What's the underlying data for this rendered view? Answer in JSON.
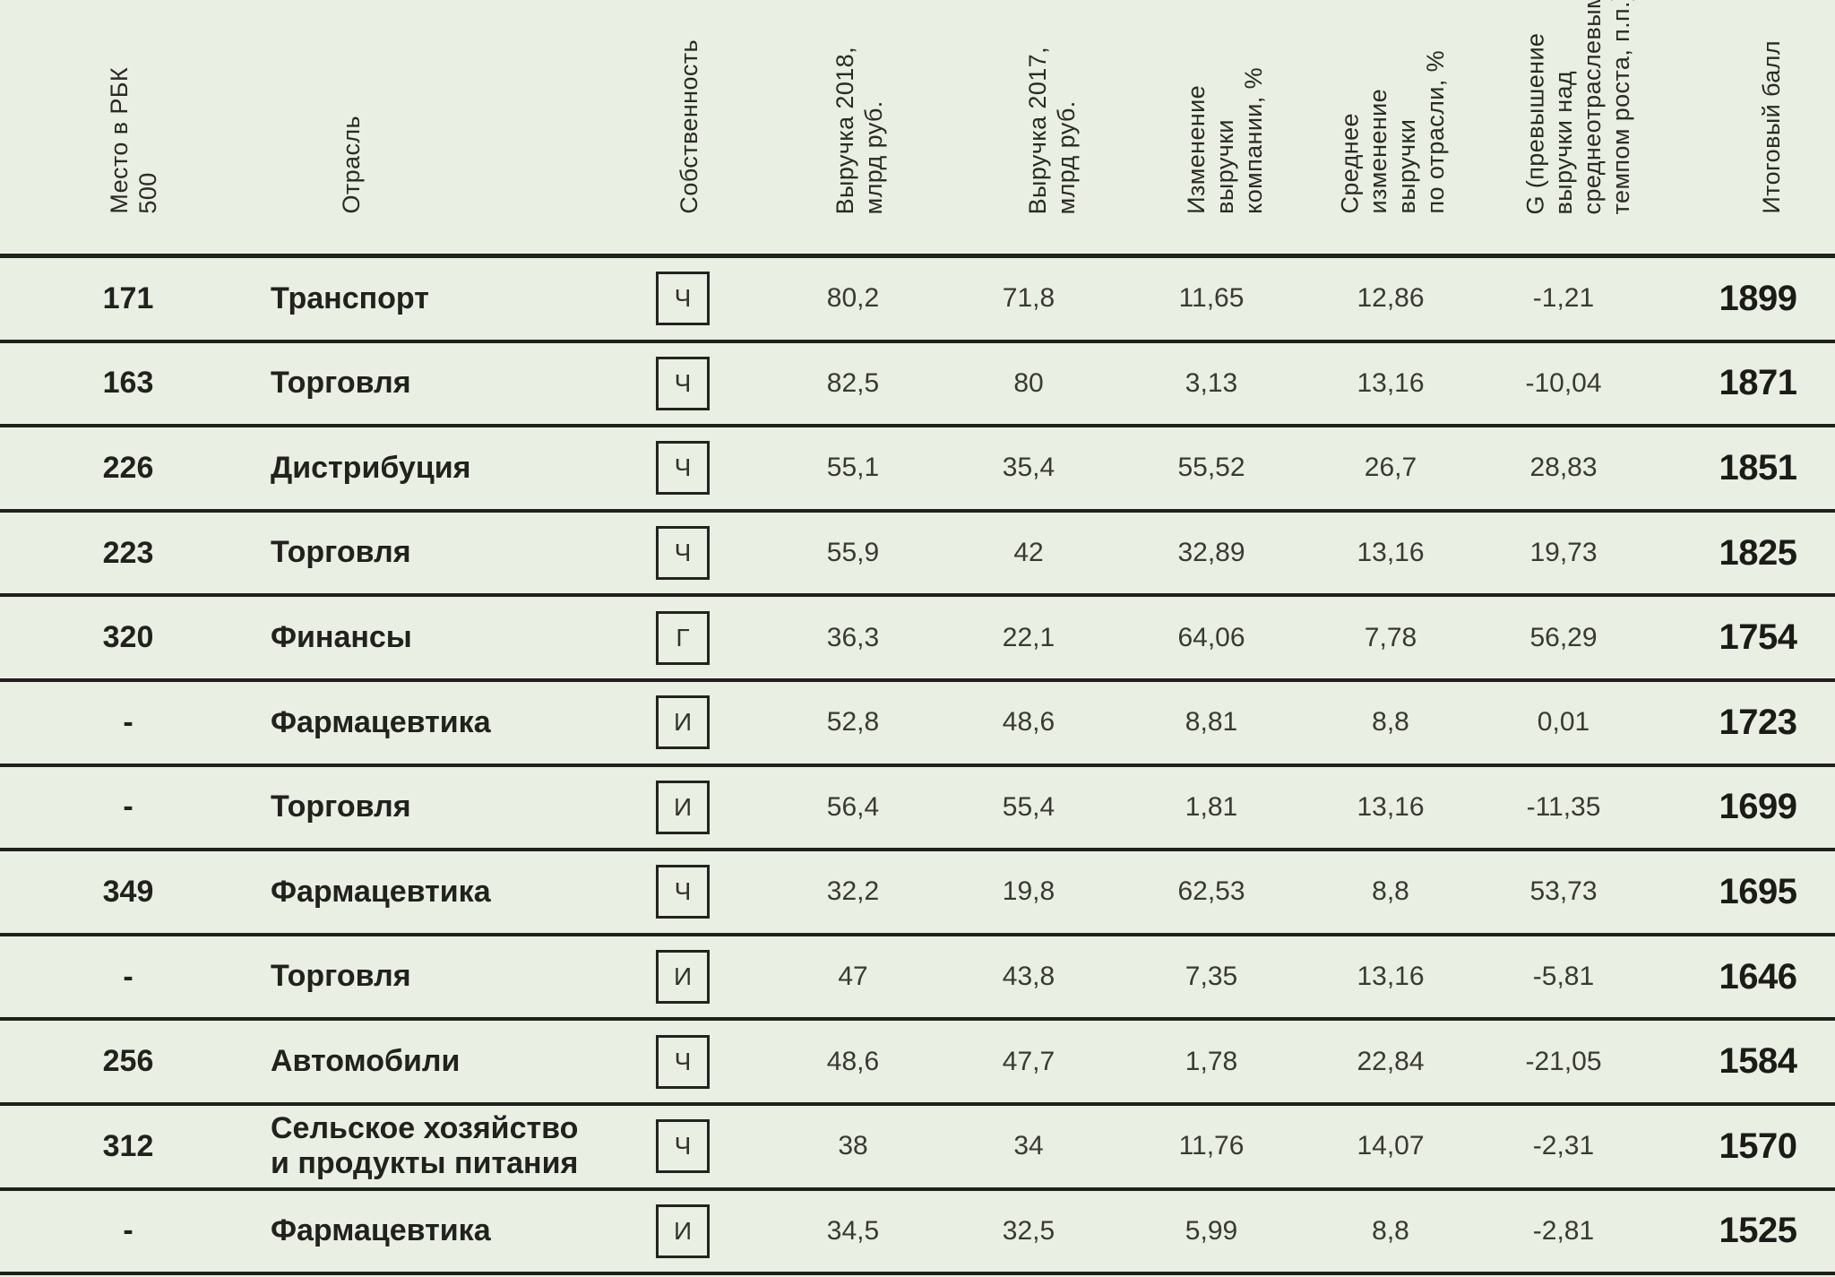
{
  "colors": {
    "background": "#e9efe2",
    "line": "#20201c",
    "text_bold": "#21211d",
    "text_regular": "#3a3a34"
  },
  "table": {
    "columns": [
      {
        "id": "rank",
        "label": "Место в РБК\n500"
      },
      {
        "id": "industry",
        "label": "Отрасль"
      },
      {
        "id": "ownership",
        "label": "Собственность"
      },
      {
        "id": "revenue_2018",
        "label": "Выручка 2018,\nмлрд руб."
      },
      {
        "id": "revenue_2017",
        "label": "Выручка 2017,\nмлрд руб."
      },
      {
        "id": "change",
        "label": "Изменение\nвыручки\nкомпании, %"
      },
      {
        "id": "avg_change",
        "label": "Среднее\nизменение\nвыручки\nпо отрасли, %"
      },
      {
        "id": "g",
        "label": "G (превышение\nвыручки над\nсреднеотраслевым\nтемпом роста, п.п.)"
      },
      {
        "id": "score",
        "label": "Итоговый балл"
      }
    ],
    "rows": [
      {
        "rank": "171",
        "industry": "Транспорт",
        "ownership": "Ч",
        "revenue_2018": "80,2",
        "revenue_2017": "71,8",
        "change_pct": "11,65",
        "industry_avg_change_pct": "12,86",
        "g": "-1,21",
        "score": "1899"
      },
      {
        "rank": "163",
        "industry": "Торговля",
        "ownership": "Ч",
        "revenue_2018": "82,5",
        "revenue_2017": "80",
        "change_pct": "3,13",
        "industry_avg_change_pct": "13,16",
        "g": "-10,04",
        "score": "1871"
      },
      {
        "rank": "226",
        "industry": "Дистрибуция",
        "ownership": "Ч",
        "revenue_2018": "55,1",
        "revenue_2017": "35,4",
        "change_pct": "55,52",
        "industry_avg_change_pct": "26,7",
        "g": "28,83",
        "score": "1851"
      },
      {
        "rank": "223",
        "industry": "Торговля",
        "ownership": "Ч",
        "revenue_2018": "55,9",
        "revenue_2017": "42",
        "change_pct": "32,89",
        "industry_avg_change_pct": "13,16",
        "g": "19,73",
        "score": "1825"
      },
      {
        "rank": "320",
        "industry": "Финансы",
        "ownership": "Г",
        "revenue_2018": "36,3",
        "revenue_2017": "22,1",
        "change_pct": "64,06",
        "industry_avg_change_pct": "7,78",
        "g": "56,29",
        "score": "1754"
      },
      {
        "rank": "-",
        "industry": "Фармацевтика",
        "ownership": "И",
        "revenue_2018": "52,8",
        "revenue_2017": "48,6",
        "change_pct": "8,81",
        "industry_avg_change_pct": "8,8",
        "g": "0,01",
        "score": "1723"
      },
      {
        "rank": "-",
        "industry": "Торговля",
        "ownership": "И",
        "revenue_2018": "56,4",
        "revenue_2017": "55,4",
        "change_pct": "1,81",
        "industry_avg_change_pct": "13,16",
        "g": "-11,35",
        "score": "1699"
      },
      {
        "rank": "349",
        "industry": "Фармацевтика",
        "ownership": "Ч",
        "revenue_2018": "32,2",
        "revenue_2017": "19,8",
        "change_pct": "62,53",
        "industry_avg_change_pct": "8,8",
        "g": "53,73",
        "score": "1695"
      },
      {
        "rank": "-",
        "industry": "Торговля",
        "ownership": "И",
        "revenue_2018": "47",
        "revenue_2017": "43,8",
        "change_pct": "7,35",
        "industry_avg_change_pct": "13,16",
        "g": "-5,81",
        "score": "1646"
      },
      {
        "rank": "256",
        "industry": "Автомобили",
        "ownership": "Ч",
        "revenue_2018": "48,6",
        "revenue_2017": "47,7",
        "change_pct": "1,78",
        "industry_avg_change_pct": "22,84",
        "g": "-21,05",
        "score": "1584"
      },
      {
        "rank": "312",
        "industry": "Сельское хозяйство\nи продукты питания",
        "ownership": "Ч",
        "revenue_2018": "38",
        "revenue_2017": "34",
        "change_pct": "11,76",
        "industry_avg_change_pct": "14,07",
        "g": "-2,31",
        "score": "1570"
      },
      {
        "rank": "-",
        "industry": "Фармацевтика",
        "ownership": "И",
        "revenue_2018": "34,5",
        "revenue_2017": "32,5",
        "change_pct": "5,99",
        "industry_avg_change_pct": "8,8",
        "g": "-2,81",
        "score": "1525"
      }
    ]
  }
}
